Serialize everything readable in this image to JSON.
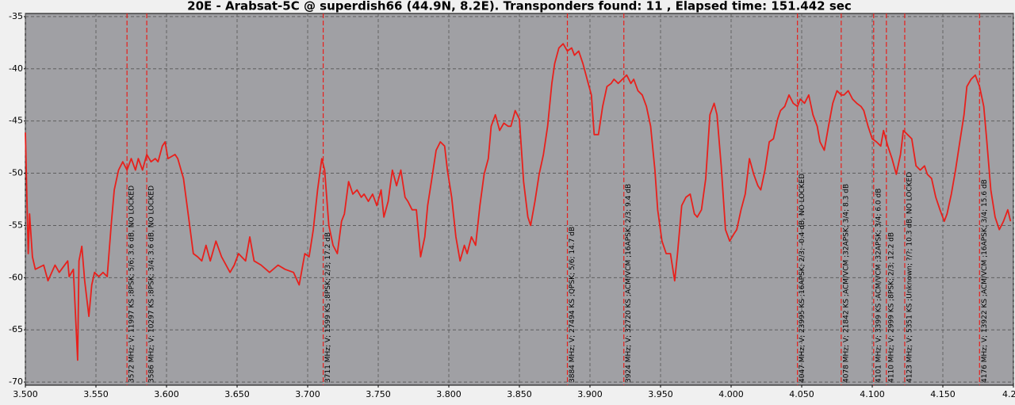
{
  "chart_data": {
    "type": "line",
    "title": "20E - Arabsat-5C @ superdish66 (44.9N, 8.2E). Transponders found: 11 , Elapsed time: 151.442 sec",
    "color": "#e8201c",
    "grid": true,
    "marker_color": "#e8201c",
    "xlim": [
      3.5,
      4.2
    ],
    "ylim": [
      -70.3,
      -34.7
    ],
    "xticks": [
      {
        "value": 3.5,
        "label": "3.500"
      },
      {
        "value": 3.55,
        "label": "3.550"
      },
      {
        "value": 3.6,
        "label": "3.600"
      },
      {
        "value": 3.65,
        "label": "3.650"
      },
      {
        "value": 3.7,
        "label": "3.700"
      },
      {
        "value": 3.75,
        "label": "3.750"
      },
      {
        "value": 3.8,
        "label": "3.800"
      },
      {
        "value": 3.85,
        "label": "3.850"
      },
      {
        "value": 3.9,
        "label": "3.900"
      },
      {
        "value": 3.95,
        "label": "3.950"
      },
      {
        "value": 4.0,
        "label": "4.000"
      },
      {
        "value": 4.05,
        "label": "4.050"
      },
      {
        "value": 4.1,
        "label": "4.100"
      },
      {
        "value": 4.15,
        "label": "4.150"
      },
      {
        "value": 4.2,
        "label": "4.2"
      }
    ],
    "yticks": [
      -35,
      -40,
      -45,
      -50,
      -55,
      -60,
      -65,
      -70
    ],
    "x": [
      3.5,
      3.502,
      3.503,
      3.505,
      3.507,
      3.513,
      3.516,
      3.521,
      3.524,
      3.53,
      3.531,
      3.534,
      3.537,
      3.538,
      3.54,
      3.542,
      3.545,
      3.547,
      3.549,
      3.552,
      3.555,
      3.558,
      3.561,
      3.563,
      3.566,
      3.569,
      3.572,
      3.575,
      3.578,
      3.58,
      3.583,
      3.586,
      3.589,
      3.592,
      3.594,
      3.597,
      3.599,
      3.601,
      3.606,
      3.608,
      3.612,
      3.616,
      3.619,
      3.622,
      3.625,
      3.628,
      3.631,
      3.635,
      3.639,
      3.645,
      3.648,
      3.651,
      3.656,
      3.659,
      3.662,
      3.667,
      3.673,
      3.679,
      3.684,
      3.69,
      3.694,
      3.698,
      3.701,
      3.704,
      3.707,
      3.71,
      3.712,
      3.715,
      3.718,
      3.721,
      3.724,
      3.726,
      3.729,
      3.732,
      3.735,
      3.738,
      3.74,
      3.743,
      3.746,
      3.749,
      3.752,
      3.754,
      3.757,
      3.76,
      3.763,
      3.766,
      3.769,
      3.771,
      3.774,
      3.777,
      3.78,
      3.783,
      3.785,
      3.788,
      3.791,
      3.794,
      3.797,
      3.799,
      3.802,
      3.805,
      3.808,
      3.811,
      3.813,
      3.816,
      3.819,
      3.822,
      3.825,
      3.828,
      3.83,
      3.833,
      3.836,
      3.839,
      3.842,
      3.844,
      3.847,
      3.85,
      3.853,
      3.856,
      3.858,
      3.861,
      3.864,
      3.867,
      3.87,
      3.873,
      3.875,
      3.878,
      3.881,
      3.884,
      3.887,
      3.889,
      3.892,
      3.895,
      3.898,
      3.901,
      3.903,
      3.906,
      3.909,
      3.912,
      3.915,
      3.917,
      3.92,
      3.923,
      3.926,
      3.929,
      3.931,
      3.934,
      3.937,
      3.94,
      3.943,
      3.946,
      3.948,
      3.951,
      3.954,
      3.957,
      3.96,
      3.962,
      3.965,
      3.968,
      3.971,
      3.974,
      3.976,
      3.979,
      3.982,
      3.985,
      3.988,
      3.99,
      3.993,
      3.996,
      3.999,
      4.002,
      4.004,
      4.007,
      4.01,
      4.013,
      4.016,
      4.019,
      4.021,
      4.024,
      4.027,
      4.03,
      4.033,
      4.035,
      4.038,
      4.041,
      4.044,
      4.047,
      4.049,
      4.052,
      4.055,
      4.058,
      4.061,
      4.063,
      4.066,
      4.069,
      4.072,
      4.075,
      4.078,
      4.08,
      4.083,
      4.086,
      4.089,
      4.092,
      4.094,
      4.097,
      4.1,
      4.103,
      4.106,
      4.108,
      4.111,
      4.114,
      4.117,
      4.12,
      4.122,
      4.125,
      4.128,
      4.131,
      4.134,
      4.137,
      4.139,
      4.142,
      4.145,
      4.148,
      4.151,
      4.153,
      4.156,
      4.159,
      4.162,
      4.165,
      4.167,
      4.17,
      4.173,
      4.176,
      4.179,
      4.181,
      4.184,
      4.187,
      4.19,
      4.193,
      4.196,
      4.198
    ],
    "values": [
      -46.1,
      -57.7,
      -53.9,
      -58.0,
      -59.2,
      -58.8,
      -60.3,
      -58.8,
      -59.5,
      -58.4,
      -59.9,
      -59.2,
      -67.9,
      -58.4,
      -57.0,
      -60.3,
      -63.7,
      -60.7,
      -59.5,
      -59.9,
      -59.5,
      -59.9,
      -54.6,
      -51.6,
      -49.7,
      -48.9,
      -49.7,
      -48.6,
      -49.7,
      -48.6,
      -49.7,
      -48.2,
      -48.9,
      -48.6,
      -48.9,
      -47.4,
      -47.0,
      -48.6,
      -48.2,
      -48.6,
      -50.5,
      -54.6,
      -57.7,
      -58.0,
      -58.4,
      -56.9,
      -58.4,
      -56.5,
      -58.0,
      -59.5,
      -58.8,
      -57.7,
      -58.4,
      -56.1,
      -58.4,
      -58.8,
      -59.5,
      -58.8,
      -59.2,
      -59.5,
      -60.7,
      -57.7,
      -58.0,
      -55.4,
      -51.6,
      -48.6,
      -49.7,
      -55.0,
      -56.9,
      -57.7,
      -54.6,
      -53.9,
      -50.8,
      -52.0,
      -51.6,
      -52.3,
      -52.0,
      -52.7,
      -52.0,
      -53.1,
      -51.6,
      -54.2,
      -52.7,
      -49.7,
      -51.2,
      -49.7,
      -52.3,
      -52.7,
      -53.5,
      -53.5,
      -58.0,
      -56.1,
      -53.1,
      -50.5,
      -47.8,
      -47.0,
      -47.4,
      -49.7,
      -52.3,
      -56.1,
      -58.4,
      -56.9,
      -57.7,
      -56.1,
      -56.9,
      -53.1,
      -50.1,
      -48.6,
      -45.5,
      -44.4,
      -45.9,
      -45.2,
      -45.5,
      -45.5,
      -44.0,
      -44.8,
      -50.8,
      -54.2,
      -55.0,
      -52.7,
      -50.1,
      -48.2,
      -45.5,
      -41.4,
      -39.5,
      -38.0,
      -37.6,
      -38.3,
      -38.0,
      -38.7,
      -38.3,
      -39.5,
      -41.0,
      -42.5,
      -46.3,
      -46.3,
      -43.6,
      -41.7,
      -41.4,
      -41.0,
      -41.4,
      -41.0,
      -40.6,
      -41.4,
      -41.0,
      -42.1,
      -42.5,
      -43.6,
      -45.5,
      -49.7,
      -53.5,
      -56.5,
      -57.7,
      -57.7,
      -60.3,
      -57.7,
      -53.1,
      -52.3,
      -52.0,
      -53.9,
      -54.2,
      -53.5,
      -50.5,
      -44.4,
      -43.3,
      -44.4,
      -49.3,
      -55.4,
      -56.5,
      -55.8,
      -55.4,
      -53.5,
      -52.0,
      -48.6,
      -50.1,
      -51.2,
      -51.6,
      -49.7,
      -47.0,
      -46.7,
      -44.8,
      -44.0,
      -43.6,
      -42.5,
      -43.3,
      -43.6,
      -42.9,
      -43.3,
      -42.5,
      -44.4,
      -45.5,
      -47.0,
      -47.8,
      -45.5,
      -43.3,
      -42.1,
      -42.5,
      -42.5,
      -42.1,
      -42.9,
      -43.3,
      -43.6,
      -44.0,
      -45.5,
      -46.7,
      -47.0,
      -47.4,
      -45.9,
      -47.4,
      -48.6,
      -50.1,
      -48.2,
      -45.9,
      -46.3,
      -46.7,
      -49.3,
      -49.7,
      -49.3,
      -50.1,
      -50.5,
      -52.3,
      -53.5,
      -54.6,
      -53.9,
      -52.0,
      -49.7,
      -47.0,
      -44.4,
      -41.7,
      -41.0,
      -40.6,
      -41.7,
      -43.6,
      -46.7,
      -51.6,
      -54.2,
      -55.4,
      -54.6,
      -53.5,
      -54.6
    ],
    "markers": [
      {
        "x": 3.572,
        "label": "3572 MHz; V; 11997 KS ;8PSK; 5/6; 3.6 dB, NO LOCKED"
      },
      {
        "x": 3.586,
        "label": "3586 MHz; V; 10297 KS ;8PSK; 3/4; 3.6 dB, NO LOCKED"
      },
      {
        "x": 3.711,
        "label": "3711 MHz; V; 1599 KS ;8PSK; 2/3; 17.2 dB"
      },
      {
        "x": 3.884,
        "label": "3884 MHz; V; 27494 KS ;QPSK; 5/6; 14.7 dB"
      },
      {
        "x": 3.924,
        "label": "3924 MHz; V; 32720 KS ;ACM/VCM ;16APSK; 2/3; 9.4 dB"
      },
      {
        "x": 4.047,
        "label": "4047 MHz; V; 23995 KS ;16APSK; 2/3; -0.4 dB, NO LOCKED"
      },
      {
        "x": 4.078,
        "label": "4078 MHz; V; 21842 KS ;ACM/VCM ;32APSK; 3/4; 8.3 dB"
      },
      {
        "x": 4.101,
        "label": "4101 MHz; V; 3399 KS ;ACM/VCM ;32APSK; 3/4; 6.0 dB"
      },
      {
        "x": 4.11,
        "label": "4110 MHz; V; 2999 KS ;8PSK; 2/3; 12.2 dB"
      },
      {
        "x": 4.123,
        "label": "4123 MHz; V; 5351 KS ;Unknown; ?/?; 10.3 dB, NO LOCKED"
      },
      {
        "x": 4.176,
        "label": "4176 MHz; V; 13922 KS ;ACM/VCM ;16APSK; 3/4; 15.6 dB"
      }
    ]
  }
}
